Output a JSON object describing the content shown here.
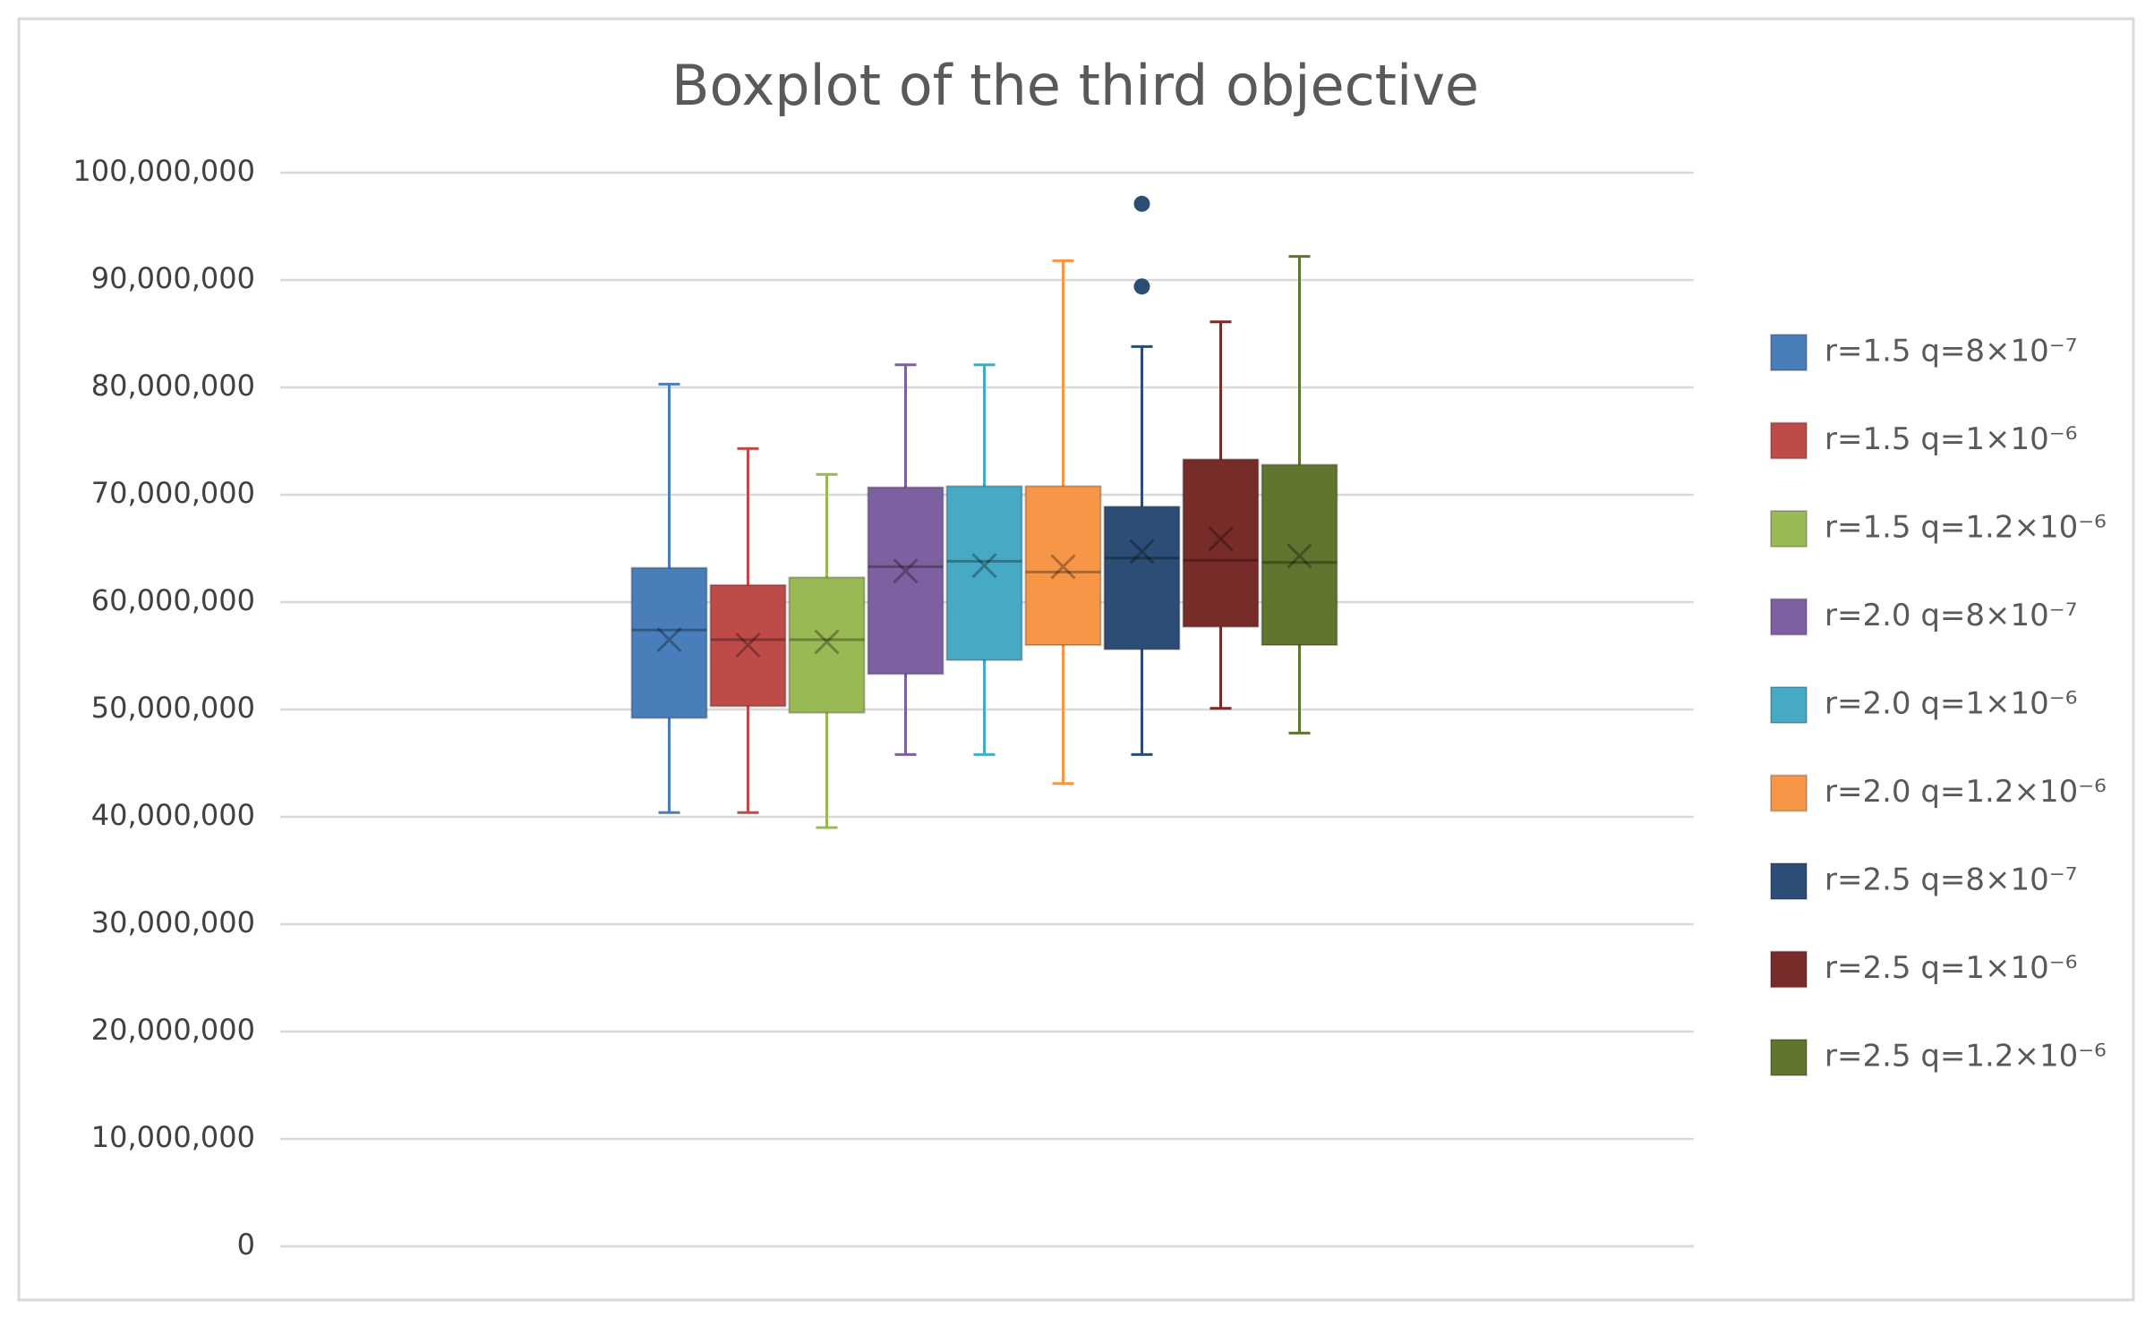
{
  "chart_data": {
    "type": "boxplot",
    "title": "Boxplot of the third objective",
    "ylim": [
      0,
      100000000
    ],
    "yticks": [
      0,
      {
        "value": 10000000,
        "label": "10,000,000"
      },
      {
        "value": 20000000,
        "label": "20,000,000"
      },
      {
        "value": 30000000,
        "label": "30,000,000"
      },
      {
        "value": 40000000,
        "label": "40,000,000"
      },
      {
        "value": 50000000,
        "label": "50,000,000"
      },
      {
        "value": 60000000,
        "label": "60,000,000"
      },
      {
        "value": 70000000,
        "label": "70,000,000"
      },
      {
        "value": 80000000,
        "label": "80,000,000"
      },
      {
        "value": 90000000,
        "label": "90,000,000"
      },
      {
        "value": 100000000,
        "label": "100,000,000"
      }
    ],
    "grid": true,
    "legend": "right",
    "series": [
      {
        "name": "r=1.5 q=8×10⁻⁷",
        "color": "#4a7ebb",
        "min": 40400000,
        "q1": 49200000,
        "median": 57400000,
        "q3": 63200000,
        "max": 80300000,
        "mean": 56500000
      },
      {
        "name": "r=1.5 q=1×10⁻⁶",
        "color": "#be4b48",
        "min": 40400000,
        "q1": 50300000,
        "median": 56500000,
        "q3": 61600000,
        "max": 74300000,
        "mean": 56000000
      },
      {
        "name": "r=1.5 q=1.2×10⁻⁶",
        "color": "#98b954",
        "min": 39000000,
        "q1": 49700000,
        "median": 56500000,
        "q3": 62300000,
        "max": 71900000,
        "mean": 56300000
      },
      {
        "name": "r=2.0 q=8×10⁻⁷",
        "color": "#7d60a0",
        "min": 45800000,
        "q1": 53300000,
        "median": 63300000,
        "q3": 70700000,
        "max": 82100000,
        "mean": 62900000
      },
      {
        "name": "r=2.0 q=1×10⁻⁶",
        "color": "#46aac5",
        "min": 45800000,
        "q1": 54600000,
        "median": 63800000,
        "q3": 70800000,
        "max": 82100000,
        "mean": 63400000
      },
      {
        "name": "r=2.0 q=1.2×10⁻⁶",
        "color": "#f79646",
        "min": 43100000,
        "q1": 56000000,
        "median": 62800000,
        "q3": 70800000,
        "max": 91800000,
        "mean": 63300000
      },
      {
        "name": "r=2.5 q=8×10⁻⁷",
        "color": "#2c4d75",
        "min": 45800000,
        "q1": 55600000,
        "median": 64100000,
        "q3": 68900000,
        "max": 83800000,
        "mean": 64700000,
        "outliers": [
          97100000,
          89400000
        ]
      },
      {
        "name": "r=2.5 q=1×10⁻⁶",
        "color": "#772c2a",
        "min": 50100000,
        "q1": 57700000,
        "median": 63900000,
        "q3": 73300000,
        "max": 86100000,
        "mean": 65900000
      },
      {
        "name": "r=2.5 q=1.2×10⁻⁶",
        "color": "#5f7530",
        "min": 47800000,
        "q1": 56000000,
        "median": 63700000,
        "q3": 72800000,
        "max": 92200000,
        "mean": 64300000
      }
    ]
  }
}
